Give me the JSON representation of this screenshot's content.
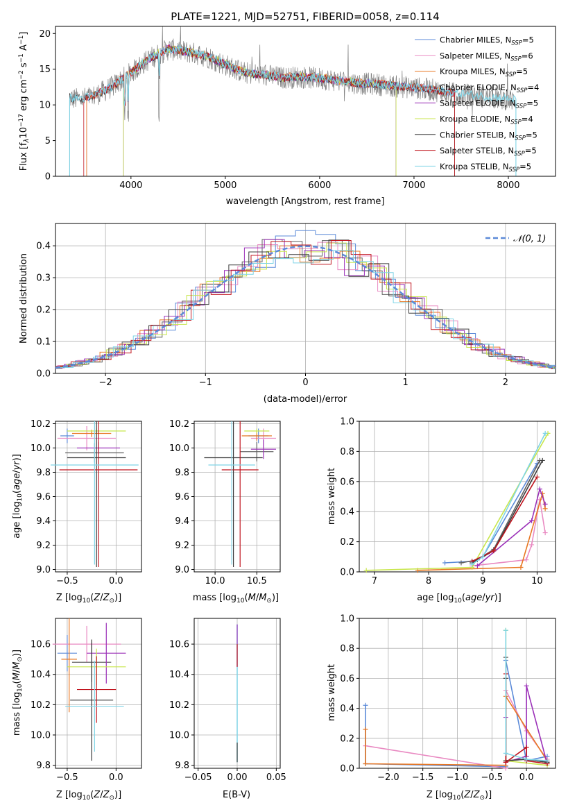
{
  "colors": {
    "chabrier_miles": "#5b8ad8",
    "salpeter_miles": "#e98ac2",
    "kroupa_miles": "#e87722",
    "chabrier_elodie": "#606060",
    "salpeter_elodie": "#9b30b8",
    "kroupa_elodie": "#c8e64c",
    "chabrier_stelib": "#3c3c3c",
    "salpeter_stelib": "#c0141e",
    "kroupa_stelib": "#7fd4e6",
    "gray_data": "#808080",
    "grid": "#b0b0b0",
    "gauss": "#5b8ad8"
  },
  "chart_data": [
    {
      "type": "line",
      "title": "PLATE=1221, MJD=52751, FIBERID=0058, z=0.114",
      "xlabel": "wavelength [Angstrom, rest frame]",
      "ylabel": "Flux [f_λ10^-17 erg cm^-2 s^-1 A^-1]",
      "ylabel_parts": {
        "a": "Flux [f",
        "b": "λ",
        "c": "10",
        "d": "−17",
        "e": " erg cm",
        "f": "−2",
        "g": " s",
        "h": "−1",
        "i": " A",
        "j": "−1",
        "k": "]"
      },
      "xlim": [
        3200,
        8500
      ],
      "ylim": [
        0,
        21
      ],
      "xticks": [
        4000,
        5000,
        6000,
        7000,
        8000
      ],
      "yticks": [
        0,
        5,
        10,
        15,
        20
      ],
      "legend_position": "top-right",
      "grid": false,
      "anchors_x": [
        3350,
        3400,
        3500,
        3600,
        3800,
        4000,
        4200,
        4400,
        4600,
        4800,
        5000,
        5200,
        5400,
        5600,
        5800,
        6000,
        6200,
        6400,
        6600,
        6800,
        7000,
        7200,
        7300
      ],
      "anchors_y": [
        11.0,
        10.8,
        10.9,
        11.2,
        12.5,
        14.5,
        16.5,
        17.8,
        17.4,
        16.8,
        15.6,
        14.5,
        14.2,
        13.8,
        13.9,
        13.7,
        13.4,
        13.0,
        12.9,
        12.6,
        12.4,
        12.1,
        11.8
      ],
      "series": [
        {
          "name": "Chabrier MILES, N",
          "sub": "SSP",
          "tail": "=5",
          "xmin": 3530,
          "xmax": 7430
        },
        {
          "name": "Salpeter MILES, N",
          "sub": "SSP",
          "tail": "=6",
          "xmin": 3530,
          "xmax": 7430
        },
        {
          "name": "Kroupa MILES, N",
          "sub": "SSP",
          "tail": "=5",
          "xmin": 3530,
          "xmax": 7430
        },
        {
          "name": "Chabrier ELODIE, N",
          "sub": "SSP",
          "tail": "=4",
          "xmin": 3920,
          "xmax": 6810
        },
        {
          "name": "Salpeter ELODIE, N",
          "sub": "SSP",
          "tail": "=5",
          "xmin": 3920,
          "xmax": 6810
        },
        {
          "name": "Kroupa ELODIE, N",
          "sub": "SSP",
          "tail": "=4",
          "xmin": 3920,
          "xmax": 6810
        },
        {
          "name": "Chabrier STELIB, N",
          "sub": "SSP",
          "tail": "=5",
          "xmin": 3350,
          "xmax": 7430
        },
        {
          "name": "Salpeter STELIB, N",
          "sub": "SSP",
          "tail": "=5",
          "xmin": 3500,
          "xmax": 7430
        },
        {
          "name": "Kroupa STELIB, N",
          "sub": "SSP",
          "tail": "=5",
          "xmin": 3350,
          "xmax": 8080
        }
      ]
    },
    {
      "type": "histogram",
      "xlabel": "(data-model)/error",
      "ylabel": "Normed distribution",
      "xlim": [
        -2.5,
        2.5
      ],
      "ylim": [
        0,
        0.47
      ],
      "xticks": [
        -2,
        -1,
        0,
        1,
        2
      ],
      "xtick_labels": [
        "−2",
        "−1",
        "0",
        "1",
        "2"
      ],
      "yticks": [
        0.0,
        0.1,
        0.2,
        0.3,
        0.4
      ],
      "ytick_labels": [
        "0.0",
        "0.1",
        "0.2",
        "0.3",
        "0.4"
      ],
      "grid": true,
      "legend_label": "𝒩(0, 1)",
      "legend_position": "top-right",
      "bin_edges": [
        -2.5,
        2.5
      ],
      "bins": 25
    },
    {
      "type": "scatter",
      "xlabel": "Z [log10(Z/Z⊙)]",
      "ylabel": "age  [log10(age/yr)]",
      "xlim": [
        -0.62,
        0.26
      ],
      "ylim": [
        8.98,
        10.22
      ],
      "xticks": [
        -0.5,
        0.0
      ],
      "xtick_labels": [
        "−0.5",
        "0.0"
      ],
      "yticks": [
        9.0,
        9.2,
        9.4,
        9.6,
        9.8,
        10.0,
        10.2
      ],
      "ytick_labels": [
        "9.0",
        "9.2",
        "9.4",
        "9.6",
        "9.8",
        "10.0",
        "10.2"
      ],
      "grid": true,
      "points": [
        {
          "x": -0.5,
          "y": 10.1,
          "xe": 0.07,
          "ye": 0.06
        },
        {
          "x": -0.3,
          "y": 10.08,
          "xe": 0.3,
          "ye": 0.1
        },
        {
          "x": -0.25,
          "y": 10.12,
          "xe": 0.2,
          "ye": 0.03
        },
        {
          "x": -0.22,
          "y": 9.96,
          "xe": 0.3,
          "ye": 0.08
        },
        {
          "x": -0.18,
          "y": 10.0,
          "xe": 0.22,
          "ye": 0.05
        },
        {
          "x": -0.2,
          "y": 10.14,
          "xe": 0.3,
          "ye": 0.02
        },
        {
          "x": -0.2,
          "y": 9.92,
          "xe": 0.3,
          "ye": 0.9
        },
        {
          "x": -0.18,
          "y": 9.82,
          "xe": 0.4,
          "ye": 0.8
        },
        {
          "x": -0.22,
          "y": 9.86,
          "xe": 0.45,
          "ye": 0.82
        }
      ]
    },
    {
      "type": "scatter",
      "xlabel": "mass [log10(M/M⊙)]",
      "ylabel": "",
      "xlim": [
        9.75,
        10.78
      ],
      "ylim": [
        8.98,
        10.22
      ],
      "xticks": [
        10.0,
        10.5
      ],
      "xtick_labels": [
        "10.0",
        "10.5"
      ],
      "yticks": [
        9.0,
        9.2,
        9.4,
        9.6,
        9.8,
        10.0,
        10.2
      ],
      "ytick_labels": [
        "9.0",
        "9.2",
        "9.4",
        "9.6",
        "9.8",
        "10.0",
        "10.2"
      ],
      "grid": true,
      "points": [
        {
          "x": 10.52,
          "y": 10.1,
          "xe": 0.12,
          "ye": 0.06
        },
        {
          "x": 10.58,
          "y": 10.08,
          "xe": 0.15,
          "ye": 0.08
        },
        {
          "x": 10.5,
          "y": 10.1,
          "xe": 0.18,
          "ye": 0.04
        },
        {
          "x": 10.5,
          "y": 9.97,
          "xe": 0.2,
          "ye": 0.08
        },
        {
          "x": 10.58,
          "y": 9.99,
          "xe": 0.15,
          "ye": 0.08
        },
        {
          "x": 10.5,
          "y": 10.14,
          "xe": 0.15,
          "ye": 0.02
        },
        {
          "x": 10.22,
          "y": 9.92,
          "xe": 0.35,
          "ye": 0.9
        },
        {
          "x": 10.3,
          "y": 9.82,
          "xe": 0.22,
          "ye": 0.8
        },
        {
          "x": 10.2,
          "y": 9.86,
          "xe": 0.28,
          "ye": 0.82
        }
      ]
    },
    {
      "type": "line",
      "xlabel": "age  [log10(age/yr)]",
      "ylabel": "mass weight",
      "xlim": [
        6.72,
        10.34
      ],
      "ylim": [
        0,
        1.0
      ],
      "xticks": [
        7,
        8,
        9,
        10
      ],
      "yticks": [
        0.0,
        0.2,
        0.4,
        0.6,
        0.8,
        1.0
      ],
      "ytick_labels": [
        "0.0",
        "0.2",
        "0.4",
        "0.6",
        "0.8",
        "1.0"
      ],
      "grid": true,
      "series": [
        {
          "x": [
            8.3,
            8.8,
            9.0,
            10.0
          ],
          "y": [
            0.06,
            0.07,
            0.1,
            0.72
          ]
        },
        {
          "x": [
            8.8,
            9.8,
            9.9,
            10.05,
            10.15
          ],
          "y": [
            0.04,
            0.08,
            0.18,
            0.48,
            0.26
          ]
        },
        {
          "x": [
            7.8,
            9.7,
            10.1,
            10.15
          ],
          "y": [
            0.01,
            0.03,
            0.52,
            0.42
          ]
        },
        {
          "x": [
            8.6,
            8.9,
            9.2,
            10.05
          ],
          "y": [
            0.06,
            0.08,
            0.15,
            0.74
          ]
        },
        {
          "x": [
            8.9,
            9.9,
            10.05,
            10.15
          ],
          "y": [
            0.04,
            0.34,
            0.55,
            0.45
          ]
        },
        {
          "x": [
            6.85,
            8.8,
            10.2
          ],
          "y": [
            0.01,
            0.03,
            0.92
          ]
        },
        {
          "x": [
            8.8,
            9.2,
            10.1
          ],
          "y": [
            0.06,
            0.14,
            0.74
          ]
        },
        {
          "x": [
            8.8,
            9.2,
            10.0
          ],
          "y": [
            0.07,
            0.14,
            0.63
          ]
        },
        {
          "x": [
            8.8,
            9.0,
            10.15
          ],
          "y": [
            0.05,
            0.1,
            0.92
          ]
        }
      ]
    },
    {
      "type": "scatter",
      "xlabel": "Z [log10(Z/Z⊙)]",
      "ylabel": "mass [log10(M/M⊙)]",
      "xlim": [
        -0.62,
        0.26
      ],
      "ylim": [
        9.78,
        10.77
      ],
      "xticks": [
        -0.5,
        0.0
      ],
      "xtick_labels": [
        "−0.5",
        "0.0"
      ],
      "yticks": [
        9.8,
        10.0,
        10.2,
        10.4,
        10.6
      ],
      "ytick_labels": [
        "9.8",
        "10.0",
        "10.2",
        "10.4",
        "10.6"
      ],
      "grid": true,
      "points": [
        {
          "x": -0.5,
          "y": 10.54,
          "xe": 0.1,
          "ye": 0.12
        },
        {
          "x": -0.3,
          "y": 10.6,
          "xe": 0.35,
          "ye": 0.12
        },
        {
          "x": -0.48,
          "y": 10.5,
          "xe": 0.08,
          "ye": 0.35
        },
        {
          "x": -0.25,
          "y": 10.48,
          "xe": 0.2,
          "ye": 0.13
        },
        {
          "x": -0.1,
          "y": 10.54,
          "xe": 0.2,
          "ye": 0.2
        },
        {
          "x": -0.2,
          "y": 10.45,
          "xe": 0.3,
          "ye": 0.12
        },
        {
          "x": -0.25,
          "y": 10.23,
          "xe": 0.22,
          "ye": 0.4
        },
        {
          "x": -0.2,
          "y": 10.3,
          "xe": 0.2,
          "ye": 0.22
        },
        {
          "x": -0.22,
          "y": 10.19,
          "xe": 0.3,
          "ye": 0.3
        }
      ]
    },
    {
      "type": "scatter",
      "xlabel": "E(B-V)",
      "ylabel": "",
      "xlim": [
        -0.055,
        0.055
      ],
      "ylim": [
        9.78,
        10.77
      ],
      "xticks": [
        -0.05,
        0.0,
        0.05
      ],
      "xtick_labels": [
        "−0.05",
        "0.00",
        "0.05"
      ],
      "yticks": [
        9.8,
        10.0,
        10.2,
        10.4,
        10.6
      ],
      "ytick_labels": [
        "9.8",
        "10.0",
        "10.2",
        "10.4",
        "10.6"
      ],
      "grid": true,
      "segments": [
        [
          9.82,
          10.73
        ]
      ]
    },
    {
      "type": "line",
      "xlabel": "Z [log10(Z/Z⊙)]",
      "ylabel": "mass weight",
      "xlim": [
        -2.42,
        0.42
      ],
      "ylim": [
        0,
        1.0
      ],
      "xticks": [
        -2.0,
        -1.5,
        -1.0,
        -0.5,
        0.0
      ],
      "xtick_labels": [
        "−2.0",
        "−1.5",
        "−1.0",
        "−0.5",
        "0.0"
      ],
      "yticks": [
        0.0,
        0.2,
        0.4,
        0.6,
        0.8,
        1.0
      ],
      "ytick_labels": [
        "0.0",
        "0.2",
        "0.4",
        "0.6",
        "0.8",
        "1.0"
      ],
      "grid": true,
      "series": [
        {
          "x": [
            -2.33,
            -2.33,
            -0.3,
            -0.3,
            0.0,
            0.3
          ],
          "y": [
            0.42,
            0.03,
            0.01,
            0.72,
            0.05,
            0.08
          ]
        },
        {
          "x": [
            -2.33,
            -0.3,
            -0.3,
            0.0,
            0.3
          ],
          "y": [
            0.15,
            0.0,
            0.52,
            0.25,
            0.06
          ]
        },
        {
          "x": [
            -2.33,
            -2.33,
            -0.3,
            -0.3,
            0.3
          ],
          "y": [
            0.26,
            0.03,
            0.02,
            0.48,
            0.05
          ]
        },
        {
          "x": [
            -0.3,
            -0.3,
            0.0,
            0.3
          ],
          "y": [
            0.74,
            0.05,
            0.06,
            0.04
          ]
        },
        {
          "x": [
            -0.3,
            -0.3,
            0.0,
            0.0,
            0.3
          ],
          "y": [
            0.34,
            0.04,
            0.08,
            0.55,
            0.03
          ]
        },
        {
          "x": [
            -0.3,
            -0.3,
            0.3
          ],
          "y": [
            0.92,
            0.05,
            0.02
          ]
        },
        {
          "x": [
            -0.3,
            -0.3,
            0.0,
            0.3
          ],
          "y": [
            0.6,
            0.05,
            0.06,
            0.04
          ]
        },
        {
          "x": [
            -0.3,
            -0.3,
            0.0,
            0.0,
            0.3
          ],
          "y": [
            0.63,
            0.04,
            0.14,
            0.05,
            0.03
          ]
        },
        {
          "x": [
            -0.3,
            -0.3,
            0.0,
            0.3
          ],
          "y": [
            0.92,
            0.1,
            0.06,
            0.05
          ]
        }
      ]
    }
  ]
}
